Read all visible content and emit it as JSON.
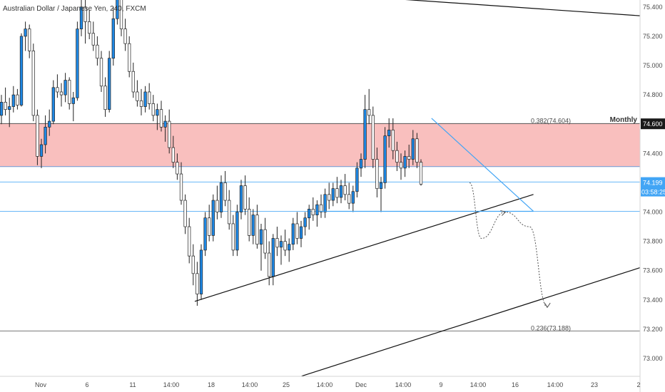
{
  "chart_data": {
    "type": "candlestick",
    "title": "Australian Dollar / Japanese Yen, 240, FXCM",
    "y_axis": {
      "position": "right",
      "ylim": [
        72.87,
        75.53
      ],
      "ticks": [
        "75.400",
        "75.200",
        "75.000",
        "74.800",
        "74.600",
        "74.400",
        "74.200",
        "74.000",
        "73.800",
        "73.600",
        "73.400",
        "73.200",
        "73.000"
      ]
    },
    "x_axis": {
      "ticks": [
        "Nov",
        "6",
        "11",
        "14:00",
        "18",
        "14:00",
        "25",
        "14:00",
        "Dec",
        "14:00",
        "9",
        "14:00",
        "16",
        "14:00",
        "23",
        "2"
      ]
    },
    "price_labels": {
      "monthly_level": {
        "name": "Monthly",
        "value": "74.600"
      },
      "current_price": {
        "value": "74.199",
        "countdown": "03:58:25"
      }
    },
    "zone": {
      "from": 74.31,
      "to": 74.604,
      "color": "#f7a9a8"
    },
    "fibonacci": [
      {
        "label": "0.382(74.604)",
        "value": 74.604
      },
      {
        "label": "0.236(73.188)",
        "value": 73.188
      }
    ],
    "levels": [
      {
        "value": 74.205,
        "color": "#42a5f5"
      },
      {
        "value": 74.005,
        "color": "#42a5f5"
      }
    ],
    "colors": {
      "up": "#1e88e5",
      "down": "#ffffff",
      "wick": "#222222",
      "trendline": "#111111",
      "triangle": "#42a5f5",
      "horizontal": "#787878"
    },
    "candles_ohlc": [
      [
        74.66,
        74.8,
        74.6,
        74.75
      ],
      [
        74.75,
        74.85,
        74.66,
        74.7
      ],
      [
        74.7,
        74.78,
        74.58,
        74.72
      ],
      [
        74.72,
        74.86,
        74.68,
        74.8
      ],
      [
        74.8,
        74.84,
        74.7,
        74.73
      ],
      [
        74.73,
        75.22,
        74.72,
        75.2
      ],
      [
        75.2,
        75.3,
        75.1,
        75.25
      ],
      [
        75.25,
        75.28,
        75.05,
        75.1
      ],
      [
        75.1,
        75.15,
        74.62,
        74.66
      ],
      [
        74.66,
        74.7,
        74.32,
        74.38
      ],
      [
        74.38,
        74.5,
        74.3,
        74.46
      ],
      [
        74.46,
        74.66,
        74.4,
        74.58
      ],
      [
        74.58,
        74.7,
        74.52,
        74.62
      ],
      [
        74.62,
        74.9,
        74.6,
        74.85
      ],
      [
        74.85,
        74.94,
        74.78,
        74.82
      ],
      [
        74.82,
        74.88,
        74.72,
        74.8
      ],
      [
        74.8,
        74.95,
        74.75,
        74.9
      ],
      [
        74.9,
        74.92,
        74.7,
        74.74
      ],
      [
        74.74,
        74.82,
        74.62,
        74.78
      ],
      [
        74.78,
        75.3,
        74.76,
        75.25
      ],
      [
        75.25,
        75.45,
        75.2,
        75.4
      ],
      [
        75.4,
        75.48,
        75.15,
        75.3
      ],
      [
        75.3,
        75.38,
        75.18,
        75.22
      ],
      [
        75.22,
        75.3,
        75.1,
        75.14
      ],
      [
        75.14,
        75.2,
        75.0,
        75.05
      ],
      [
        75.05,
        75.1,
        74.82,
        74.86
      ],
      [
        74.86,
        74.92,
        74.65,
        74.7
      ],
      [
        74.7,
        75.1,
        74.68,
        75.05
      ],
      [
        75.05,
        75.4,
        75.0,
        75.32
      ],
      [
        75.32,
        75.5,
        75.28,
        75.45
      ],
      [
        75.45,
        75.52,
        75.2,
        75.25
      ],
      [
        75.25,
        75.32,
        75.1,
        75.15
      ],
      [
        75.15,
        75.2,
        74.92,
        74.96
      ],
      [
        74.96,
        75.02,
        74.78,
        74.82
      ],
      [
        74.82,
        74.9,
        74.72,
        74.76
      ],
      [
        74.76,
        74.84,
        74.66,
        74.72
      ],
      [
        74.72,
        74.86,
        74.68,
        74.82
      ],
      [
        74.82,
        74.88,
        74.7,
        74.74
      ],
      [
        74.74,
        74.8,
        74.62,
        74.66
      ],
      [
        74.66,
        74.74,
        74.56,
        74.7
      ],
      [
        74.7,
        74.76,
        74.55,
        74.58
      ],
      [
        74.58,
        74.66,
        74.48,
        74.62
      ],
      [
        74.62,
        74.7,
        74.4,
        74.44
      ],
      [
        74.44,
        74.52,
        74.3,
        74.34
      ],
      [
        74.34,
        74.4,
        74.22,
        74.26
      ],
      [
        74.26,
        74.34,
        74.05,
        74.08
      ],
      [
        74.08,
        74.12,
        73.85,
        73.9
      ],
      [
        73.9,
        73.96,
        73.65,
        73.7
      ],
      [
        73.7,
        73.78,
        73.5,
        73.58
      ],
      [
        73.58,
        73.66,
        73.36,
        73.44
      ],
      [
        73.44,
        73.78,
        73.4,
        73.74
      ],
      [
        73.74,
        74.0,
        73.7,
        73.96
      ],
      [
        73.96,
        74.05,
        73.8,
        73.84
      ],
      [
        73.84,
        74.12,
        73.8,
        74.08
      ],
      [
        74.08,
        74.18,
        73.95,
        74.0
      ],
      [
        74.0,
        74.25,
        73.96,
        74.2
      ],
      [
        74.2,
        74.28,
        74.04,
        74.08
      ],
      [
        74.08,
        74.15,
        73.88,
        73.92
      ],
      [
        73.92,
        73.98,
        73.7,
        73.74
      ],
      [
        73.74,
        74.05,
        73.7,
        74.0
      ],
      [
        74.0,
        74.22,
        73.95,
        74.18
      ],
      [
        74.18,
        74.25,
        73.98,
        74.02
      ],
      [
        74.02,
        74.1,
        73.8,
        73.84
      ],
      [
        73.84,
        74.02,
        73.78,
        73.98
      ],
      [
        73.98,
        74.05,
        73.75,
        73.78
      ],
      [
        73.78,
        73.92,
        73.6,
        73.88
      ],
      [
        73.88,
        73.96,
        73.68,
        73.72
      ],
      [
        73.72,
        73.8,
        73.5,
        73.56
      ],
      [
        73.56,
        73.85,
        73.5,
        73.82
      ],
      [
        73.82,
        73.9,
        73.7,
        73.76
      ],
      [
        73.76,
        73.84,
        73.64,
        73.8
      ],
      [
        73.8,
        73.88,
        73.7,
        73.74
      ],
      [
        73.74,
        73.82,
        73.66,
        73.78
      ],
      [
        73.78,
        73.96,
        73.74,
        73.92
      ],
      [
        73.92,
        74.0,
        73.78,
        73.82
      ],
      [
        73.82,
        73.94,
        73.76,
        73.9
      ],
      [
        73.9,
        74.0,
        73.84,
        73.96
      ],
      [
        73.96,
        74.05,
        73.88,
        74.02
      ],
      [
        74.02,
        74.1,
        73.94,
        73.98
      ],
      [
        73.98,
        74.08,
        73.9,
        74.05
      ],
      [
        74.05,
        74.12,
        73.96,
        74.0
      ],
      [
        74.0,
        74.16,
        73.96,
        74.12
      ],
      [
        74.12,
        74.2,
        74.02,
        74.08
      ],
      [
        74.08,
        74.2,
        74.04,
        74.16
      ],
      [
        74.16,
        74.24,
        74.06,
        74.1
      ],
      [
        74.1,
        74.22,
        74.06,
        74.18
      ],
      [
        74.18,
        74.26,
        74.08,
        74.12
      ],
      [
        74.12,
        74.2,
        74.02,
        74.06
      ],
      [
        74.06,
        74.18,
        74.0,
        74.14
      ],
      [
        74.14,
        74.34,
        74.1,
        74.3
      ],
      [
        74.3,
        74.4,
        74.24,
        74.36
      ],
      [
        74.36,
        74.8,
        74.3,
        74.7
      ],
      [
        74.7,
        74.84,
        74.6,
        74.66
      ],
      [
        74.66,
        74.72,
        74.3,
        74.36
      ],
      [
        74.36,
        74.44,
        74.1,
        74.16
      ],
      [
        74.16,
        74.24,
        74.0,
        74.2
      ],
      [
        74.2,
        74.58,
        74.16,
        74.52
      ],
      [
        74.52,
        74.64,
        74.44,
        74.56
      ],
      [
        74.56,
        74.64,
        74.36,
        74.42
      ],
      [
        74.42,
        74.48,
        74.28,
        74.34
      ],
      [
        74.34,
        74.4,
        74.22,
        74.3
      ],
      [
        74.3,
        74.42,
        74.24,
        74.38
      ],
      [
        74.38,
        74.46,
        74.3,
        74.36
      ],
      [
        74.36,
        74.56,
        74.32,
        74.5
      ],
      [
        74.5,
        74.54,
        74.3,
        74.34
      ],
      [
        74.34,
        74.36,
        74.18,
        74.19
      ]
    ],
    "trendlines": [
      {
        "points": [
          [
            "2020-11-16 02:00",
            73.39
          ],
          [
            "2020-12-14 08:00",
            74.12
          ]
        ],
        "color": "#111111"
      },
      {
        "points": [
          [
            "2020-11-25 00:00",
            72.88
          ],
          [
            "2020-12-28 00:00",
            73.62
          ]
        ],
        "color": "#111111"
      },
      {
        "points": [
          [
            "2020-11-19 14:00",
            75.53
          ],
          [
            "2020-12-28 00:00",
            75.34
          ]
        ],
        "color": "#111111"
      },
      {
        "points": [
          [
            "2020-12-05 20:00",
            74.64
          ],
          [
            "2020-12-14 08:00",
            74.005
          ]
        ],
        "color": "#42a5f5"
      },
      {
        "points": [
          [
            "2020-11-26 10:00",
            74.005
          ],
          [
            "2020-12-14 08:00",
            74.005
          ]
        ],
        "color": "#42a5f5"
      }
    ],
    "projection": [
      [
        "2020-12-09 00:00",
        74.2
      ],
      [
        "2020-12-10 00:00",
        73.82
      ],
      [
        "2020-12-12 00:00",
        74.0
      ],
      [
        "2020-12-14 00:00",
        73.9
      ],
      [
        "2020-12-15 12:00",
        73.35
      ]
    ]
  }
}
